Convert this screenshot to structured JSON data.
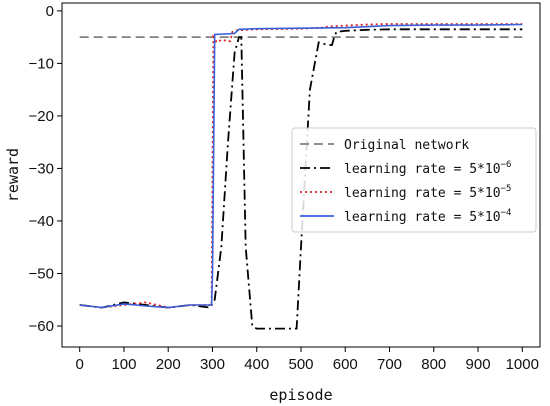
{
  "chart_data": {
    "type": "line",
    "xlabel": "episode",
    "ylabel": "reward",
    "xlim": [
      -40,
      1040
    ],
    "ylim": [
      -64,
      1.5
    ],
    "xticks": [
      0,
      100,
      200,
      300,
      400,
      500,
      600,
      700,
      800,
      900,
      1000
    ],
    "yticks": [
      0,
      -10,
      -20,
      -30,
      -40,
      -50,
      -60
    ],
    "xtick_labels": [
      "0",
      "100",
      "200",
      "300",
      "400",
      "500",
      "600",
      "700",
      "800",
      "900",
      "1000"
    ],
    "ytick_labels": [
      "0",
      "−10",
      "−20",
      "−30",
      "−40",
      "−50",
      "−60"
    ],
    "grid": false,
    "legend_position": "center-right",
    "series": [
      {
        "name": "Original network",
        "color": "#808080",
        "style": "dashed",
        "x": [
          0,
          1000
        ],
        "y": [
          -5,
          -5
        ]
      },
      {
        "name": "learning rate = 5*10",
        "name_exponent": "−6",
        "color": "#000000",
        "style": "dashdot",
        "x": [
          0,
          50,
          100,
          150,
          200,
          250,
          295,
          305,
          320,
          335,
          350,
          360,
          365,
          375,
          390,
          400,
          450,
          490,
          500,
          520,
          540,
          560,
          570,
          575,
          580,
          600,
          650,
          700,
          800,
          900,
          1000
        ],
        "y": [
          -56,
          -56.5,
          -55.5,
          -56,
          -56.5,
          -56,
          -56.5,
          -55,
          -45,
          -25,
          -8,
          -5,
          -5,
          -45,
          -60,
          -60.5,
          -60.5,
          -60.5,
          -45,
          -15,
          -6,
          -6.5,
          -6.5,
          -5,
          -4,
          -3.8,
          -3.6,
          -3.5,
          -3.5,
          -3.5,
          -3.5
        ]
      },
      {
        "name": "learning rate = 5*10",
        "name_exponent": "−5",
        "color": "#e02020",
        "style": "dotted",
        "x": [
          0,
          50,
          100,
          150,
          200,
          250,
          298,
          302,
          310,
          320,
          340,
          345,
          355,
          400,
          500,
          550,
          560,
          600,
          650,
          700,
          800,
          900,
          1000
        ],
        "y": [
          -56,
          -56.5,
          -56,
          -55.5,
          -56.5,
          -56,
          -56,
          -5,
          -6,
          -5.5,
          -5.8,
          -4,
          -3.7,
          -3.5,
          -3.4,
          -3.2,
          -3,
          -2.8,
          -2.6,
          -2.5,
          -2.5,
          -2.5,
          -2.5
        ]
      },
      {
        "name": "learning rate = 5*10",
        "name_exponent": "−4",
        "color": "#3a5fd9",
        "style": "solid",
        "x": [
          0,
          50,
          100,
          150,
          200,
          250,
          298,
          300,
          305,
          350,
          360,
          400,
          500,
          600,
          700,
          800,
          900,
          1000
        ],
        "y": [
          -56,
          -56.5,
          -55.8,
          -56.2,
          -56.5,
          -56,
          -56,
          -50,
          -4.5,
          -4.3,
          -3.5,
          -3.4,
          -3.3,
          -3.2,
          -2.8,
          -2.7,
          -2.7,
          -2.6
        ]
      }
    ]
  }
}
